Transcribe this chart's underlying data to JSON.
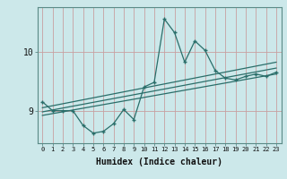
{
  "xlabel": "Humidex (Indice chaleur)",
  "ylabel": "",
  "bg_color": "#cce8ea",
  "grid_color": "#b0d4d6",
  "line_color": "#2a6e6a",
  "x_ticks": [
    0,
    1,
    2,
    3,
    4,
    5,
    6,
    7,
    8,
    9,
    10,
    11,
    12,
    13,
    14,
    15,
    16,
    17,
    18,
    19,
    20,
    21,
    22,
    23
  ],
  "y_ticks": [
    9,
    10
  ],
  "ylim": [
    8.45,
    10.75
  ],
  "xlim": [
    -0.5,
    23.5
  ],
  "main_series": [
    [
      0,
      9.15
    ],
    [
      1,
      9.0
    ],
    [
      2,
      9.0
    ],
    [
      3,
      9.0
    ],
    [
      4,
      8.75
    ],
    [
      5,
      8.62
    ],
    [
      6,
      8.65
    ],
    [
      7,
      8.78
    ],
    [
      8,
      9.02
    ],
    [
      9,
      8.85
    ],
    [
      10,
      9.4
    ],
    [
      11,
      9.48
    ],
    [
      12,
      10.55
    ],
    [
      13,
      10.32
    ],
    [
      14,
      9.82
    ],
    [
      15,
      10.18
    ],
    [
      16,
      10.02
    ],
    [
      17,
      9.68
    ],
    [
      18,
      9.55
    ],
    [
      19,
      9.52
    ],
    [
      20,
      9.58
    ],
    [
      21,
      9.62
    ],
    [
      22,
      9.58
    ],
    [
      23,
      9.65
    ]
  ],
  "linear1": [
    [
      0,
      8.92
    ],
    [
      23,
      9.62
    ]
  ],
  "linear2": [
    [
      0,
      8.98
    ],
    [
      23,
      9.72
    ]
  ],
  "linear3": [
    [
      0,
      9.05
    ],
    [
      23,
      9.82
    ]
  ]
}
